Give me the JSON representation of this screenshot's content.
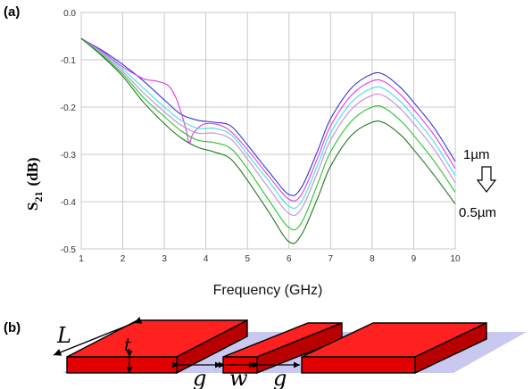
{
  "panel_a_label": "(a)",
  "panel_b_label": "(b)",
  "chart_data": {
    "type": "line",
    "title": "",
    "xlabel": "Frequency (GHz)",
    "ylabel_main": "S",
    "ylabel_sub": "21",
    "ylabel_unit": "(dB)",
    "xlim": [
      1,
      10
    ],
    "ylim": [
      -0.5,
      0.0
    ],
    "x_ticks": [
      1,
      2,
      3,
      4,
      5,
      6,
      7,
      8,
      9,
      10
    ],
    "y_ticks": [
      0.0,
      -0.1,
      -0.2,
      -0.3,
      -0.4,
      -0.5
    ],
    "y_tick_labels": [
      "0.0",
      "-0.1",
      "-0.2",
      "-0.3",
      "-0.4",
      "-0.5"
    ],
    "grid": true,
    "annotation_top": "1µm",
    "annotation_bottom": "0.5µm",
    "series": [
      {
        "color": "#3535d8",
        "points": [
          [
            1,
            -0.055
          ],
          [
            1.5,
            -0.08
          ],
          [
            2,
            -0.11
          ],
          [
            2.5,
            -0.145
          ],
          [
            3,
            -0.185
          ],
          [
            3.4,
            -0.215
          ],
          [
            3.8,
            -0.228
          ],
          [
            4.2,
            -0.232
          ],
          [
            4.6,
            -0.24
          ],
          [
            5,
            -0.28
          ],
          [
            5.5,
            -0.335
          ],
          [
            6,
            -0.385
          ],
          [
            6.3,
            -0.37
          ],
          [
            6.7,
            -0.29
          ],
          [
            7,
            -0.225
          ],
          [
            7.5,
            -0.16
          ],
          [
            8,
            -0.13
          ],
          [
            8.3,
            -0.132
          ],
          [
            8.7,
            -0.16
          ],
          [
            9,
            -0.19
          ],
          [
            9.5,
            -0.245
          ],
          [
            10,
            -0.315
          ]
        ]
      },
      {
        "color": "#e23ae2",
        "points": [
          [
            1,
            -0.055
          ],
          [
            1.5,
            -0.082
          ],
          [
            2,
            -0.115
          ],
          [
            2.5,
            -0.14
          ],
          [
            2.8,
            -0.145
          ],
          [
            3.1,
            -0.155
          ],
          [
            3.3,
            -0.185
          ],
          [
            3.5,
            -0.24
          ],
          [
            3.6,
            -0.275
          ],
          [
            3.7,
            -0.255
          ],
          [
            4,
            -0.235
          ],
          [
            4.5,
            -0.245
          ],
          [
            5,
            -0.29
          ],
          [
            5.5,
            -0.345
          ],
          [
            6,
            -0.395
          ],
          [
            6.3,
            -0.385
          ],
          [
            6.7,
            -0.305
          ],
          [
            7,
            -0.24
          ],
          [
            7.5,
            -0.175
          ],
          [
            8,
            -0.145
          ],
          [
            8.3,
            -0.147
          ],
          [
            8.7,
            -0.175
          ],
          [
            9,
            -0.205
          ],
          [
            9.5,
            -0.26
          ],
          [
            10,
            -0.33
          ]
        ]
      },
      {
        "color": "#40e0e0",
        "points": [
          [
            1,
            -0.055
          ],
          [
            1.5,
            -0.085
          ],
          [
            2,
            -0.12
          ],
          [
            2.5,
            -0.16
          ],
          [
            3,
            -0.2
          ],
          [
            3.4,
            -0.228
          ],
          [
            3.8,
            -0.245
          ],
          [
            4.2,
            -0.245
          ],
          [
            4.6,
            -0.258
          ],
          [
            5,
            -0.3
          ],
          [
            5.5,
            -0.355
          ],
          [
            6,
            -0.41
          ],
          [
            6.3,
            -0.4
          ],
          [
            6.7,
            -0.32
          ],
          [
            7,
            -0.255
          ],
          [
            7.5,
            -0.19
          ],
          [
            8,
            -0.16
          ],
          [
            8.3,
            -0.162
          ],
          [
            8.7,
            -0.19
          ],
          [
            9,
            -0.22
          ],
          [
            9.5,
            -0.275
          ],
          [
            10,
            -0.345
          ]
        ]
      },
      {
        "color": "#c58ad6",
        "points": [
          [
            1,
            -0.055
          ],
          [
            1.5,
            -0.087
          ],
          [
            2,
            -0.125
          ],
          [
            2.5,
            -0.17
          ],
          [
            3,
            -0.21
          ],
          [
            3.4,
            -0.238
          ],
          [
            3.8,
            -0.255
          ],
          [
            4.2,
            -0.255
          ],
          [
            4.6,
            -0.268
          ],
          [
            5,
            -0.31
          ],
          [
            5.5,
            -0.37
          ],
          [
            6,
            -0.425
          ],
          [
            6.3,
            -0.415
          ],
          [
            6.7,
            -0.335
          ],
          [
            7,
            -0.27
          ],
          [
            7.5,
            -0.205
          ],
          [
            8,
            -0.175
          ],
          [
            8.3,
            -0.177
          ],
          [
            8.7,
            -0.205
          ],
          [
            9,
            -0.235
          ],
          [
            9.5,
            -0.29
          ],
          [
            10,
            -0.36
          ]
        ]
      },
      {
        "color": "#2fc02f",
        "points": [
          [
            1,
            -0.055
          ],
          [
            1.5,
            -0.09
          ],
          [
            2,
            -0.13
          ],
          [
            2.5,
            -0.18
          ],
          [
            3,
            -0.22
          ],
          [
            3.4,
            -0.25
          ],
          [
            3.8,
            -0.27
          ],
          [
            4.2,
            -0.275
          ],
          [
            4.6,
            -0.288
          ],
          [
            5,
            -0.33
          ],
          [
            5.5,
            -0.395
          ],
          [
            6,
            -0.455
          ],
          [
            6.3,
            -0.445
          ],
          [
            6.7,
            -0.36
          ],
          [
            7,
            -0.295
          ],
          [
            7.5,
            -0.23
          ],
          [
            8,
            -0.2
          ],
          [
            8.3,
            -0.202
          ],
          [
            8.7,
            -0.23
          ],
          [
            9,
            -0.26
          ],
          [
            9.5,
            -0.315
          ],
          [
            10,
            -0.38
          ]
        ]
      },
      {
        "color": "#207a20",
        "points": [
          [
            1,
            -0.055
          ],
          [
            1.5,
            -0.092
          ],
          [
            2,
            -0.135
          ],
          [
            2.5,
            -0.19
          ],
          [
            3,
            -0.235
          ],
          [
            3.4,
            -0.265
          ],
          [
            3.8,
            -0.285
          ],
          [
            4.2,
            -0.295
          ],
          [
            4.6,
            -0.31
          ],
          [
            5,
            -0.355
          ],
          [
            5.5,
            -0.42
          ],
          [
            6,
            -0.485
          ],
          [
            6.3,
            -0.47
          ],
          [
            6.7,
            -0.39
          ],
          [
            7,
            -0.325
          ],
          [
            7.5,
            -0.26
          ],
          [
            8,
            -0.232
          ],
          [
            8.3,
            -0.234
          ],
          [
            8.7,
            -0.26
          ],
          [
            9,
            -0.29
          ],
          [
            9.5,
            -0.345
          ],
          [
            10,
            -0.405
          ]
        ]
      }
    ]
  },
  "diagram": {
    "label_L": "L",
    "label_t": "t",
    "label_g_left": "g",
    "label_w": "w",
    "label_g_right": "g",
    "colors": {
      "strip_front": "#e30000",
      "strip_top": "#ff2020",
      "strip_side": "#b80000",
      "substrate": "#c8c8f0"
    }
  }
}
